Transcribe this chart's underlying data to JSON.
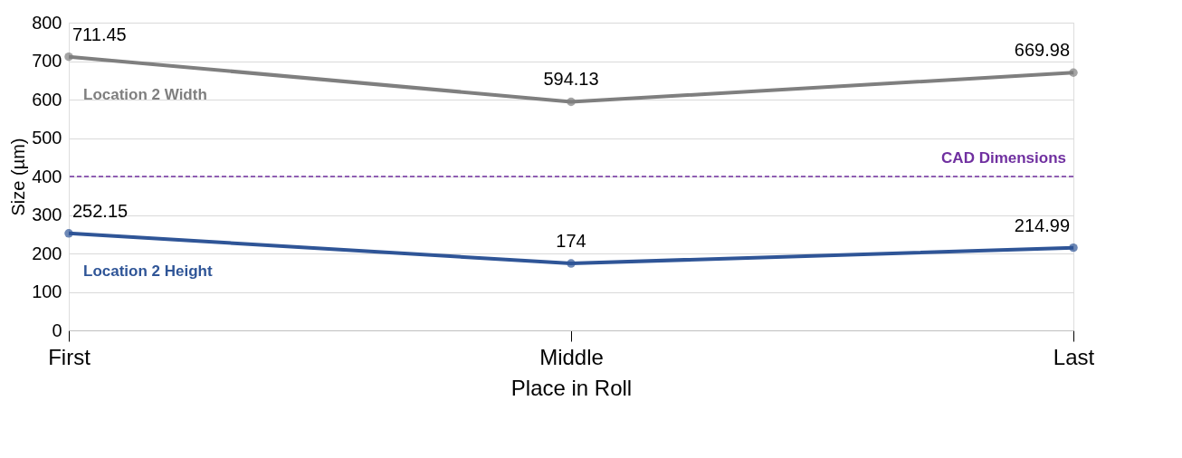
{
  "chart_data": {
    "type": "line",
    "xlabel": "Place in Roll",
    "ylabel": "Size (µm)",
    "categories": [
      "First",
      "Middle",
      "Last"
    ],
    "series": [
      {
        "name": "Location 2 Width",
        "color": "#7f7f7f",
        "values": [
          711.45,
          594.13,
          669.98
        ]
      },
      {
        "name": "Location 2 Height",
        "color": "#2f5597",
        "values": [
          252.15,
          174,
          214.99
        ]
      }
    ],
    "ylim": [
      0,
      800
    ],
    "yticks": [
      0,
      100,
      200,
      300,
      400,
      500,
      600,
      700,
      800
    ],
    "ref_lines": [
      {
        "axis": "y",
        "value": 400,
        "label": "CAD Dimensions",
        "color": "#7030a0",
        "line_style": "dashed"
      }
    ],
    "grid": "y",
    "legend": false,
    "marker": "circle",
    "line_style": "solid",
    "data_labels": true
  }
}
